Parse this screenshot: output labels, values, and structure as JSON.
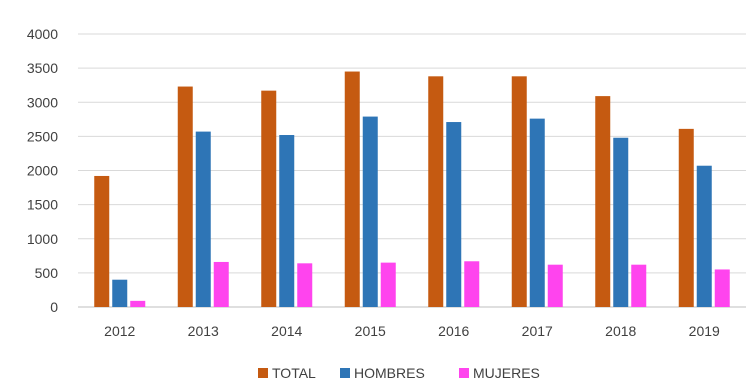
{
  "chart_data": {
    "type": "bar",
    "title": "",
    "xlabel": "",
    "ylabel": "",
    "categories": [
      "2012",
      "2013",
      "2014",
      "2015",
      "2016",
      "2017",
      "2018",
      "2019"
    ],
    "series": [
      {
        "name": "TOTAL",
        "color": "#c55a11",
        "values": [
          1920,
          3230,
          3170,
          3450,
          3380,
          3380,
          3090,
          2610
        ]
      },
      {
        "name": "HOMBRES",
        "color": "#2e75b6",
        "values": [
          400,
          2570,
          2520,
          2790,
          2710,
          2760,
          2480,
          2070
        ]
      },
      {
        "name": "MUJERES",
        "color": "#ff44ee",
        "values": [
          90,
          660,
          640,
          650,
          670,
          620,
          620,
          550
        ]
      }
    ],
    "ylim": [
      0,
      4000
    ],
    "yticks": [
      0,
      500,
      1000,
      1500,
      2000,
      2500,
      3000,
      3500,
      4000
    ],
    "grid": true,
    "legend_position": "bottom-center"
  }
}
